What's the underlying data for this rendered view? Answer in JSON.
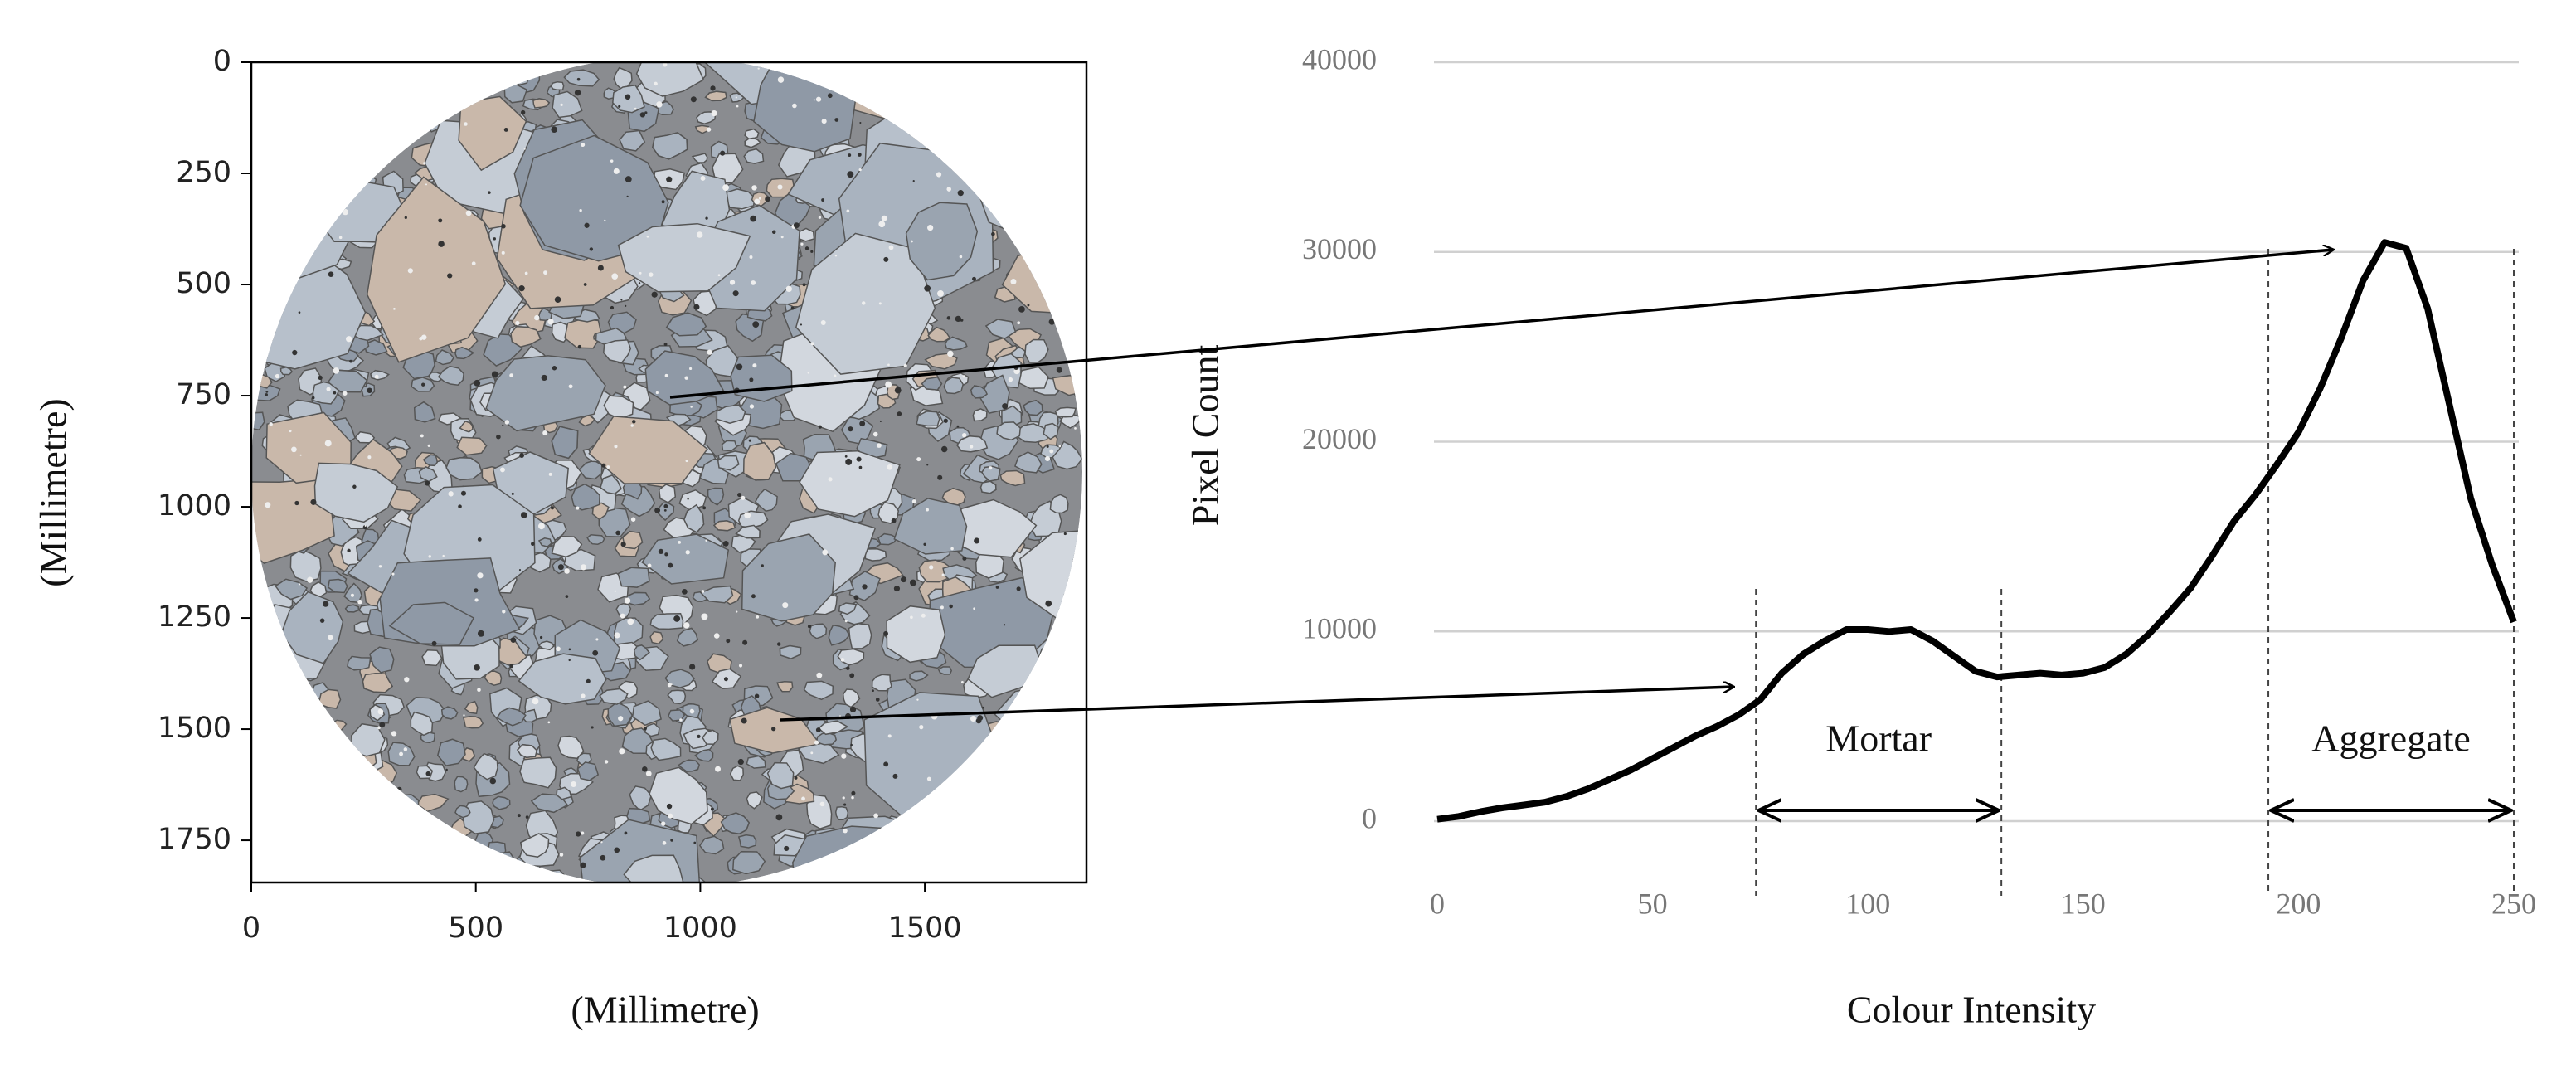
{
  "chart_data": [
    {
      "type": "image",
      "xlabel": "(Millimetre)",
      "ylabel": "(Millimetre)",
      "xlim": [
        0,
        1860
      ],
      "xticks": [
        0,
        500,
        1000,
        1500
      ],
      "ylim": [
        0,
        1845
      ],
      "yticks": [
        0,
        250,
        500,
        750,
        1000,
        1250,
        1500,
        1750
      ],
      "y_inverted": true
    },
    {
      "type": "line",
      "xlabel": "Colour Intensity",
      "ylabel": "Pixel Count",
      "x": [
        0,
        5,
        10,
        15,
        20,
        25,
        30,
        35,
        40,
        45,
        50,
        55,
        60,
        65,
        70,
        75,
        80,
        85,
        90,
        95,
        100,
        105,
        110,
        115,
        120,
        125,
        130,
        135,
        140,
        145,
        150,
        155,
        160,
        165,
        170,
        175,
        180,
        185,
        190,
        195,
        200,
        205,
        210,
        215,
        220,
        225,
        230,
        235,
        240,
        245,
        250
      ],
      "series": [
        {
          "color": "#000000",
          "values": [
            100,
            250,
            500,
            700,
            850,
            1000,
            1300,
            1700,
            2200,
            2700,
            3300,
            3900,
            4500,
            5000,
            5600,
            6400,
            7800,
            8800,
            9500,
            10100,
            10100,
            10000,
            10100,
            9500,
            8700,
            7900,
            7600,
            7700,
            7800,
            7700,
            7800,
            8100,
            8800,
            9800,
            11000,
            12300,
            14000,
            15800,
            17200,
            18800,
            20500,
            22800,
            25500,
            28500,
            30500,
            30200,
            27000,
            22000,
            17000,
            13500,
            10500
          ]
        }
      ],
      "xlim": [
        0,
        250
      ],
      "xticks": [
        0,
        50,
        100,
        150,
        200,
        250
      ],
      "ylim": [
        0,
        40000
      ],
      "yticks": [
        0,
        10000,
        20000,
        30000,
        40000
      ],
      "grid": true,
      "regions": [
        {
          "label": "Mortar",
          "range": [
            74,
            131
          ]
        },
        {
          "label": "Aggregate",
          "range": [
            193,
            250
          ]
        }
      ]
    }
  ]
}
